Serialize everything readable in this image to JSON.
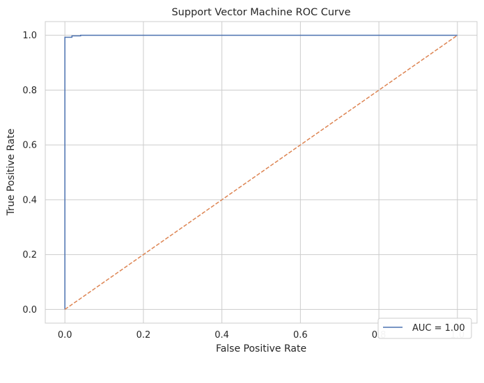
{
  "chart_data": {
    "type": "line",
    "title": "Support Vector Machine ROC Curve",
    "xlabel": "False Positive Rate",
    "ylabel": "True Positive Rate",
    "xlim": [
      -0.05,
      1.05
    ],
    "ylim": [
      -0.05,
      1.05
    ],
    "xticks": [
      0.0,
      0.2,
      0.4,
      0.6,
      0.8,
      1.0
    ],
    "yticks": [
      0.0,
      0.2,
      0.4,
      0.6,
      0.8,
      1.0
    ],
    "tick_labels_x": [
      "0.0",
      "0.2",
      "0.4",
      "0.6",
      "0.8",
      "1.0"
    ],
    "tick_labels_y": [
      "0.0",
      "0.2",
      "0.4",
      "0.6",
      "0.8",
      "1.0"
    ],
    "grid": true,
    "legend_position": "lower-right",
    "series": [
      {
        "name": "AUC = 1.00",
        "color": "#4c72b0",
        "style": "solid",
        "points": [
          [
            0.0,
            0.0
          ],
          [
            0.0,
            0.993
          ],
          [
            0.018,
            0.993
          ],
          [
            0.018,
            0.998
          ],
          [
            0.04,
            0.998
          ],
          [
            0.04,
            1.0
          ],
          [
            1.0,
            1.0
          ]
        ]
      },
      {
        "color": "#dd8452",
        "style": "dashed",
        "points": [
          [
            0.0,
            0.0
          ],
          [
            1.0,
            1.0
          ]
        ]
      }
    ]
  }
}
